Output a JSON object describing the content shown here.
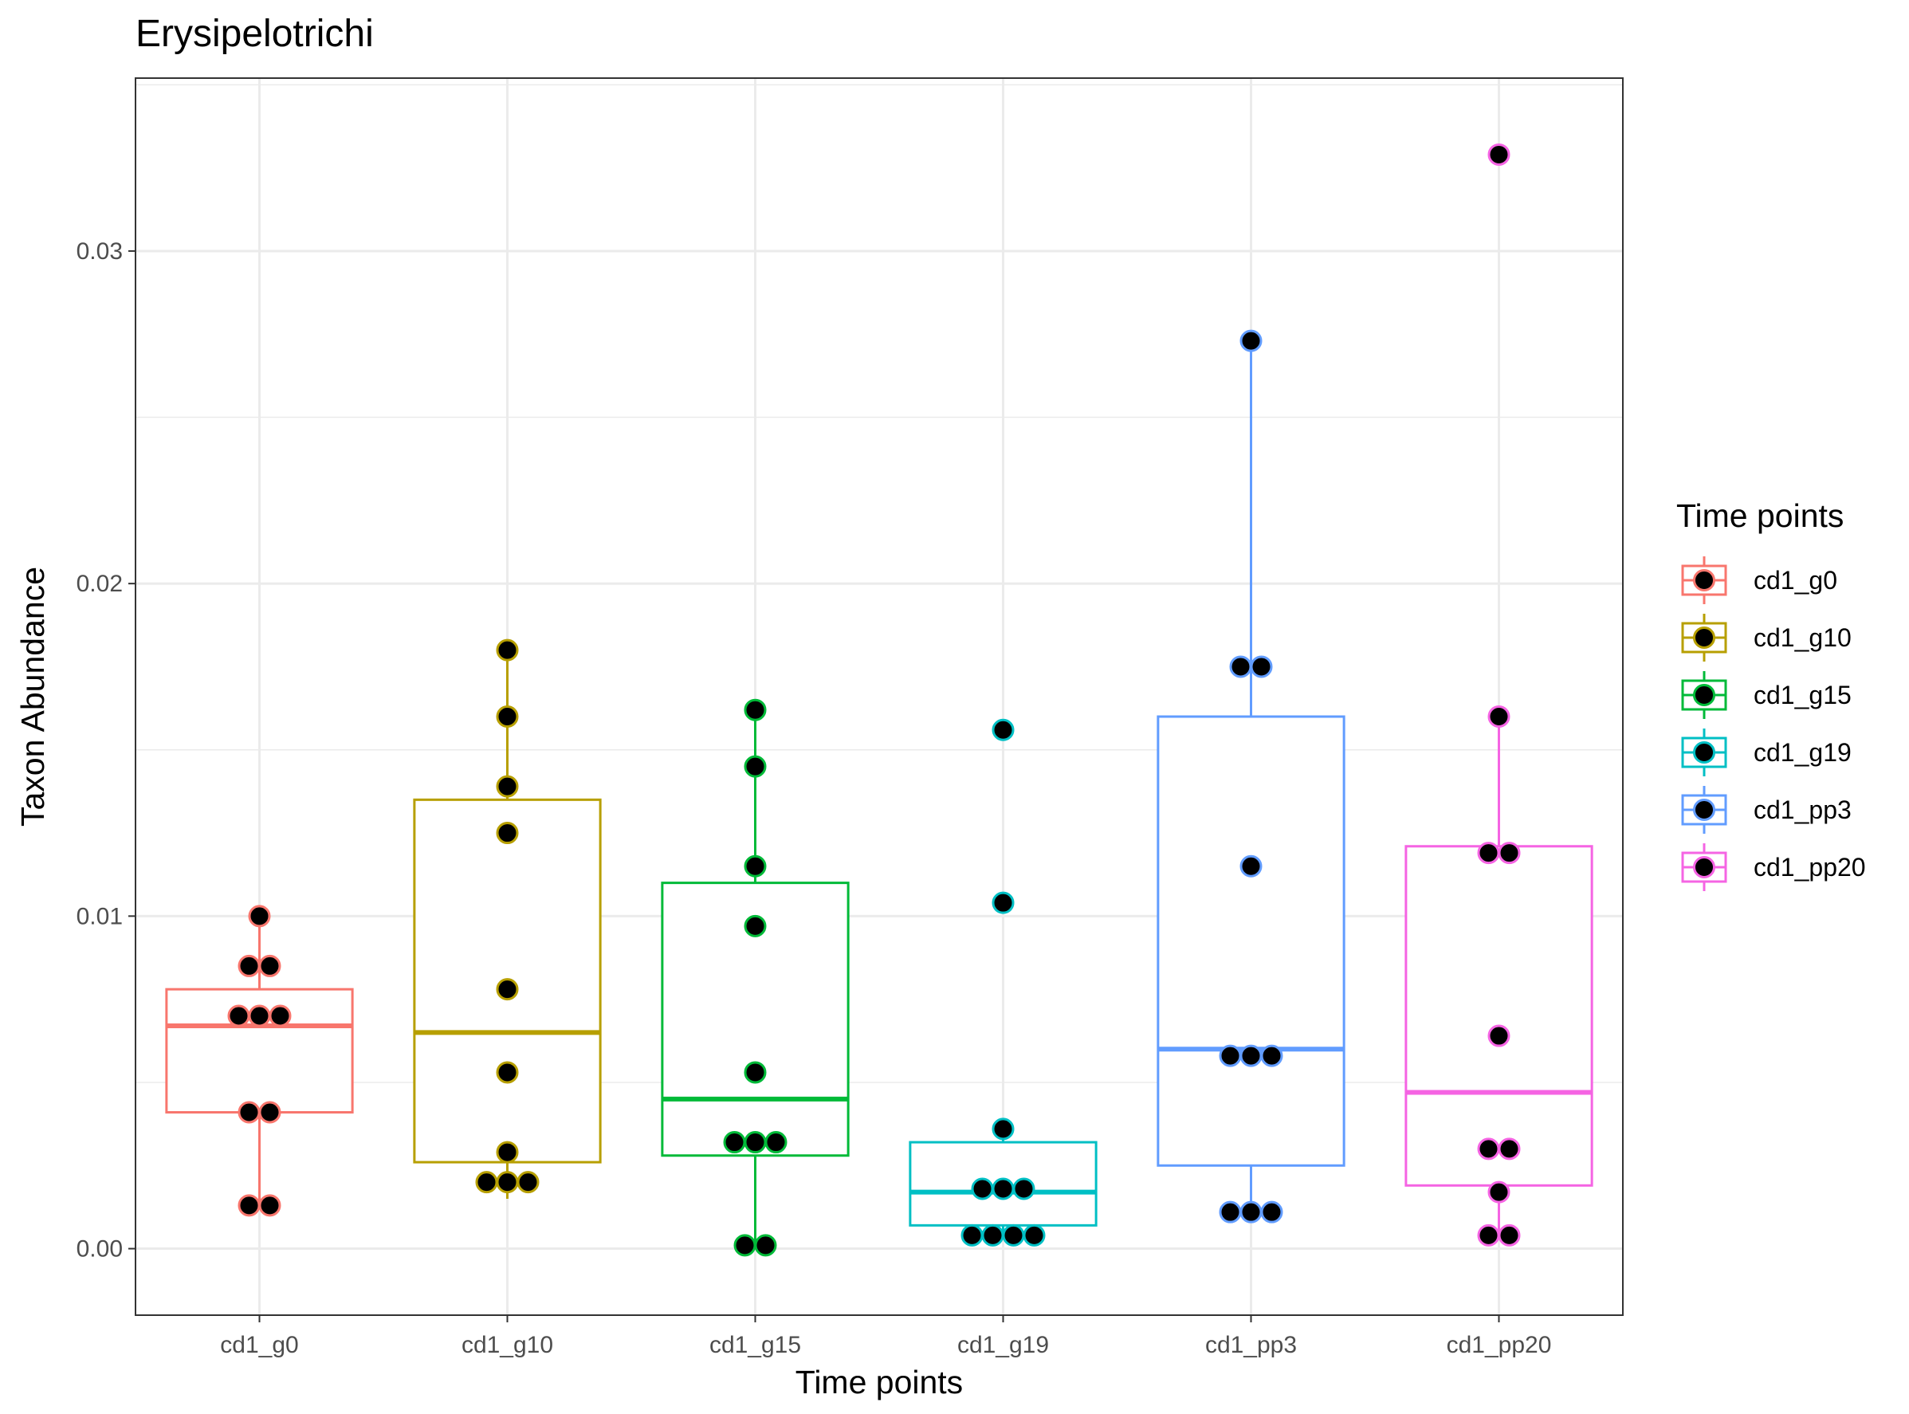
{
  "chart_data": {
    "type": "box",
    "title": "Erysipelotrichi",
    "xlabel": "Time points",
    "ylabel": "Taxon Abundance",
    "ylim": [
      -0.002,
      0.0352
    ],
    "yticks": [
      0.0,
      0.01,
      0.02,
      0.03
    ],
    "ytick_labels": [
      "0.00",
      "0.01",
      "0.02",
      "0.03"
    ],
    "grid": true,
    "legend": {
      "title": "Time points",
      "position": "right"
    },
    "categories": [
      "cd1_g0",
      "cd1_g10",
      "cd1_g15",
      "cd1_g19",
      "cd1_pp3",
      "cd1_pp20"
    ],
    "colors": [
      "#F8766D",
      "#B79F00",
      "#00BA38",
      "#00BFC4",
      "#619CFF",
      "#F564E3"
    ],
    "boxes": [
      {
        "q1": 0.0041,
        "median": 0.0067,
        "q3": 0.0078,
        "whisker_low": 0.0013,
        "whisker_high": 0.01
      },
      {
        "q1": 0.0026,
        "median": 0.0065,
        "q3": 0.0135,
        "whisker_low": 0.0015,
        "whisker_high": 0.018
      },
      {
        "q1": 0.0028,
        "median": 0.0045,
        "q3": 0.011,
        "whisker_low": 0.0001,
        "whisker_high": 0.0162
      },
      {
        "q1": 0.0007,
        "median": 0.0017,
        "q3": 0.0032,
        "whisker_low": 0.0004,
        "whisker_high": 0.0036
      },
      {
        "q1": 0.0025,
        "median": 0.006,
        "q3": 0.016,
        "whisker_low": 0.0011,
        "whisker_high": 0.0273
      },
      {
        "q1": 0.0019,
        "median": 0.0047,
        "q3": 0.0121,
        "whisker_low": 0.0004,
        "whisker_high": 0.016
      }
    ],
    "points": [
      [
        0.01,
        0.0085,
        0.0085,
        0.007,
        0.007,
        0.007,
        0.0041,
        0.0041,
        0.0013,
        0.0013
      ],
      [
        0.018,
        0.016,
        0.0139,
        0.0125,
        0.0078,
        0.0053,
        0.0029,
        0.002,
        0.002,
        0.002
      ],
      [
        0.0162,
        0.0145,
        0.0115,
        0.0097,
        0.0053,
        0.0032,
        0.0032,
        0.0032,
        0.0001,
        0.0001
      ],
      [
        0.0156,
        0.0104,
        0.0036,
        0.0018,
        0.0018,
        0.0018,
        0.0004,
        0.0004,
        0.0004,
        0.0004
      ],
      [
        0.0273,
        0.0175,
        0.0175,
        0.0115,
        0.0058,
        0.0058,
        0.0058,
        0.0011,
        0.0011,
        0.0011
      ],
      [
        0.0329,
        0.016,
        0.0119,
        0.0119,
        0.0064,
        0.003,
        0.003,
        0.0017,
        0.0004,
        0.0004
      ]
    ]
  }
}
